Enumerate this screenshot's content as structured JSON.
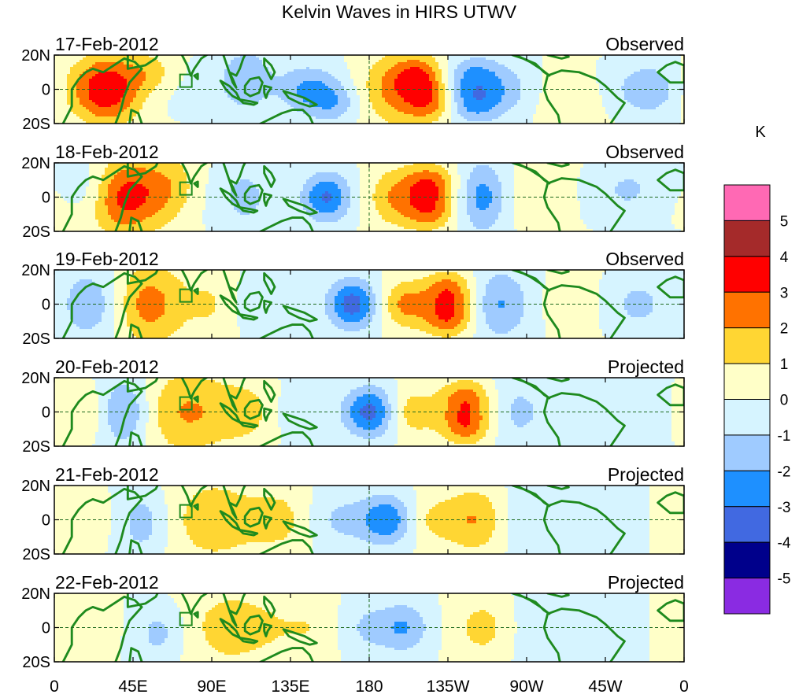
{
  "title": "Kelvin Waves in HIRS UTWV",
  "chart_data": {
    "type": "heatmap",
    "title": "Kelvin Waves in HIRS UTWV",
    "units": "K",
    "x_ticks": [
      "0",
      "45E",
      "90E",
      "135E",
      "180",
      "135W",
      "90W",
      "45W",
      "0"
    ],
    "x_tick_lons": [
      0,
      45,
      90,
      135,
      180,
      225,
      270,
      315,
      360
    ],
    "y_ticks": [
      "20N",
      "0",
      "20S"
    ],
    "y_tick_lats": [
      20,
      0,
      -20
    ],
    "lat_range": [
      -20,
      20
    ],
    "lon_range": [
      0,
      360
    ],
    "colorbar": {
      "levels": [
        -5,
        -4,
        -3,
        -2,
        -1,
        0,
        1,
        2,
        3,
        4,
        5
      ],
      "level_labels": [
        "5",
        "4",
        "3",
        "2",
        "1",
        "0",
        "-1",
        "-2",
        "-3",
        "-4",
        "-5"
      ],
      "colors": [
        "#8a2be2",
        "#00008b",
        "#4169e1",
        "#1e90ff",
        "#9fcbff",
        "#d6f4ff",
        "#ffffc8",
        "#ffd633",
        "#ff7200",
        "#ff0000",
        "#a52a2a",
        "#ff69b4"
      ]
    },
    "panels": [
      {
        "date": "17-Feb-2012",
        "label": "Observed",
        "features": [
          {
            "lon": 30,
            "lat": 0,
            "amp": 3.8,
            "wlon": 14,
            "wlat": 14
          },
          {
            "lon": 55,
            "lat": 10,
            "amp": 1.3,
            "wlon": 10,
            "wlat": 8
          },
          {
            "lon": 110,
            "lat": 5,
            "amp": -1.8,
            "wlon": 12,
            "wlat": 14
          },
          {
            "lon": 145,
            "lat": 0,
            "amp": -2.3,
            "wlon": 12,
            "wlat": 10
          },
          {
            "lon": 160,
            "lat": -8,
            "amp": -1.5,
            "wlon": 10,
            "wlat": 8
          },
          {
            "lon": 195,
            "lat": 0,
            "amp": 2.6,
            "wlon": 14,
            "wlat": 14
          },
          {
            "lon": 210,
            "lat": 8,
            "amp": 2.3,
            "wlon": 10,
            "wlat": 8
          },
          {
            "lon": 215,
            "lat": -8,
            "amp": 2.3,
            "wlon": 10,
            "wlat": 8
          },
          {
            "lon": 240,
            "lat": 8,
            "amp": -2.3,
            "wlon": 12,
            "wlat": 8
          },
          {
            "lon": 240,
            "lat": -8,
            "amp": -2.6,
            "wlon": 12,
            "wlat": 8
          },
          {
            "lon": 260,
            "lat": 0,
            "amp": -1.2,
            "wlon": 12,
            "wlat": 10
          },
          {
            "lon": 295,
            "lat": -5,
            "amp": 0.8,
            "wlon": 14,
            "wlat": 12
          },
          {
            "lon": 340,
            "lat": 0,
            "amp": -2.0,
            "wlon": 12,
            "wlat": 10
          }
        ]
      },
      {
        "date": "18-Feb-2012",
        "label": "Observed",
        "features": [
          {
            "lon": 40,
            "lat": 0,
            "amp": 3.3,
            "wlon": 14,
            "wlat": 16
          },
          {
            "lon": 65,
            "lat": 5,
            "amp": 1.8,
            "wlon": 12,
            "wlat": 14
          },
          {
            "lon": 20,
            "lat": 5,
            "amp": -1.2,
            "wlon": 10,
            "wlat": 12
          },
          {
            "lon": 110,
            "lat": 0,
            "amp": -1.4,
            "wlon": 12,
            "wlat": 14
          },
          {
            "lon": 155,
            "lat": 0,
            "amp": -3.2,
            "wlon": 10,
            "wlat": 10
          },
          {
            "lon": 195,
            "lat": 0,
            "amp": 2.2,
            "wlon": 12,
            "wlat": 12
          },
          {
            "lon": 215,
            "lat": 8,
            "amp": 2.6,
            "wlon": 10,
            "wlat": 8
          },
          {
            "lon": 215,
            "lat": -8,
            "amp": 2.4,
            "wlon": 10,
            "wlat": 8
          },
          {
            "lon": 245,
            "lat": 0,
            "amp": -2.6,
            "wlon": 10,
            "wlat": 14
          },
          {
            "lon": 280,
            "lat": 0,
            "amp": 0.8,
            "wlon": 14,
            "wlat": 14
          },
          {
            "lon": 330,
            "lat": 5,
            "amp": -1.0,
            "wlon": 14,
            "wlat": 12
          }
        ]
      },
      {
        "date": "19-Feb-2012",
        "label": "Observed",
        "features": [
          {
            "lon": 55,
            "lat": 0,
            "amp": 2.6,
            "wlon": 14,
            "wlat": 16
          },
          {
            "lon": 20,
            "lat": 0,
            "amp": -2.0,
            "wlon": 12,
            "wlat": 14
          },
          {
            "lon": 90,
            "lat": 0,
            "amp": 1.2,
            "wlon": 12,
            "wlat": 14
          },
          {
            "lon": 120,
            "lat": 0,
            "amp": -1.2,
            "wlon": 14,
            "wlat": 12
          },
          {
            "lon": 170,
            "lat": 0,
            "amp": -3.4,
            "wlon": 10,
            "wlat": 10
          },
          {
            "lon": 200,
            "lat": 0,
            "amp": 2.4,
            "wlon": 10,
            "wlat": 10
          },
          {
            "lon": 225,
            "lat": 8,
            "amp": 2.6,
            "wlon": 10,
            "wlat": 8
          },
          {
            "lon": 225,
            "lat": -8,
            "amp": 2.8,
            "wlon": 10,
            "wlat": 8
          },
          {
            "lon": 255,
            "lat": 0,
            "amp": -2.3,
            "wlon": 12,
            "wlat": 14
          },
          {
            "lon": 300,
            "lat": 0,
            "amp": 0.8,
            "wlon": 14,
            "wlat": 12
          },
          {
            "lon": 335,
            "lat": 0,
            "amp": -1.2,
            "wlon": 14,
            "wlat": 12
          }
        ]
      },
      {
        "date": "20-Feb-2012",
        "label": "Projected",
        "features": [
          {
            "lon": 75,
            "lat": 0,
            "amp": 2.3,
            "wlon": 18,
            "wlat": 16
          },
          {
            "lon": 40,
            "lat": 0,
            "amp": -2.3,
            "wlon": 10,
            "wlat": 14
          },
          {
            "lon": 110,
            "lat": 0,
            "amp": 1.1,
            "wlon": 14,
            "wlat": 14
          },
          {
            "lon": 140,
            "lat": 0,
            "amp": -1.2,
            "wlon": 12,
            "wlat": 12
          },
          {
            "lon": 180,
            "lat": 0,
            "amp": -3.2,
            "wlon": 10,
            "wlat": 10
          },
          {
            "lon": 205,
            "lat": 0,
            "amp": 1.8,
            "wlon": 10,
            "wlat": 10
          },
          {
            "lon": 235,
            "lat": 8,
            "amp": 2.4,
            "wlon": 10,
            "wlat": 8
          },
          {
            "lon": 235,
            "lat": -8,
            "amp": 2.6,
            "wlon": 10,
            "wlat": 8
          },
          {
            "lon": 265,
            "lat": 0,
            "amp": -1.4,
            "wlon": 12,
            "wlat": 14
          },
          {
            "lon": 15,
            "lat": 0,
            "amp": 0.8,
            "wlon": 10,
            "wlat": 12
          },
          {
            "lon": 330,
            "lat": 0,
            "amp": -0.8,
            "wlon": 14,
            "wlat": 12
          }
        ]
      },
      {
        "date": "21-Feb-2012",
        "label": "Projected",
        "features": [
          {
            "lon": 90,
            "lat": 0,
            "amp": 1.9,
            "wlon": 18,
            "wlat": 16
          },
          {
            "lon": 50,
            "lat": -2,
            "amp": -1.4,
            "wlon": 10,
            "wlat": 14
          },
          {
            "lon": 130,
            "lat": 0,
            "amp": 1.1,
            "wlon": 14,
            "wlat": 14
          },
          {
            "lon": 160,
            "lat": 0,
            "amp": -1.2,
            "wlon": 14,
            "wlat": 12
          },
          {
            "lon": 190,
            "lat": 0,
            "amp": -2.6,
            "wlon": 10,
            "wlat": 10
          },
          {
            "lon": 215,
            "lat": 0,
            "amp": 1.2,
            "wlon": 10,
            "wlat": 10
          },
          {
            "lon": 240,
            "lat": 0,
            "amp": 1.8,
            "wlon": 12,
            "wlat": 14
          },
          {
            "lon": 270,
            "lat": 0,
            "amp": -1.0,
            "wlon": 12,
            "wlat": 14
          },
          {
            "lon": 15,
            "lat": 0,
            "amp": 0.7,
            "wlon": 10,
            "wlat": 12
          }
        ]
      },
      {
        "date": "22-Feb-2012",
        "label": "Projected",
        "features": [
          {
            "lon": 100,
            "lat": 0,
            "amp": 1.6,
            "wlon": 20,
            "wlat": 16
          },
          {
            "lon": 60,
            "lat": -4,
            "amp": -1.2,
            "wlon": 10,
            "wlat": 12
          },
          {
            "lon": 150,
            "lat": 0,
            "amp": 0.8,
            "wlon": 14,
            "wlat": 14
          },
          {
            "lon": 175,
            "lat": 0,
            "amp": -1.0,
            "wlon": 12,
            "wlat": 12
          },
          {
            "lon": 200,
            "lat": 0,
            "amp": -1.8,
            "wlon": 10,
            "wlat": 10
          },
          {
            "lon": 245,
            "lat": 0,
            "amp": 1.1,
            "wlon": 12,
            "wlat": 14
          },
          {
            "lon": 275,
            "lat": 0,
            "amp": -0.8,
            "wlon": 12,
            "wlat": 14
          },
          {
            "lon": 20,
            "lat": 0,
            "amp": 0.6,
            "wlon": 10,
            "wlat": 12
          }
        ]
      }
    ]
  }
}
